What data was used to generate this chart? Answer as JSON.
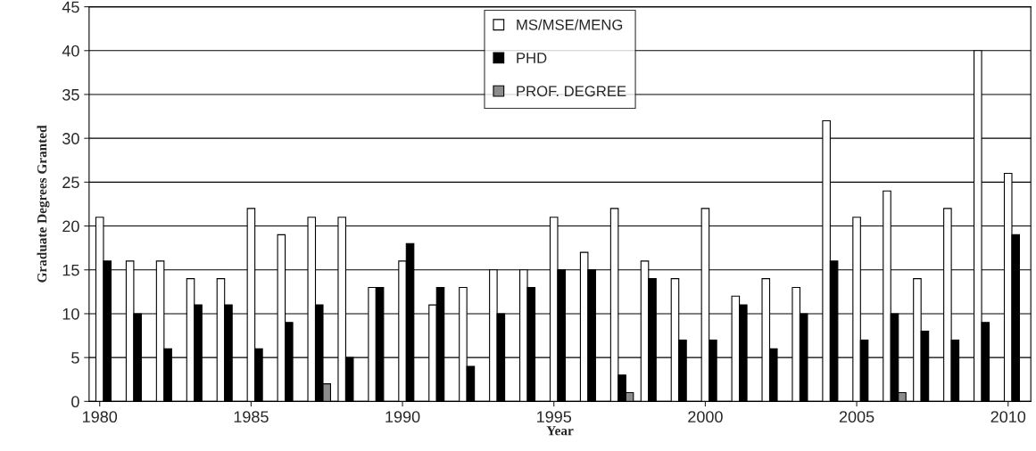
{
  "chart_data": {
    "type": "bar",
    "xlabel": "Year",
    "ylabel": "Graduate Degrees Granted",
    "x": [
      1980,
      1981,
      1982,
      1983,
      1984,
      1985,
      1986,
      1987,
      1988,
      1989,
      1990,
      1991,
      1992,
      1993,
      1994,
      1995,
      1996,
      1997,
      1998,
      1999,
      2000,
      2001,
      2002,
      2003,
      2004,
      2005,
      2006,
      2007,
      2008,
      2009,
      2010
    ],
    "series": [
      {
        "name": "MS/MSE/MENG",
        "color": "#ffffff",
        "values": [
          21,
          16,
          16,
          14,
          14,
          22,
          19,
          21,
          21,
          13,
          16,
          11,
          13,
          15,
          15,
          21,
          17,
          22,
          16,
          14,
          22,
          12,
          14,
          13,
          32,
          21,
          24,
          14,
          22,
          40,
          26
        ]
      },
      {
        "name": "PHD",
        "color": "#000000",
        "values": [
          16,
          10,
          6,
          11,
          11,
          6,
          9,
          11,
          5,
          13,
          18,
          13,
          4,
          10,
          13,
          15,
          15,
          3,
          14,
          7,
          7,
          11,
          6,
          10,
          16,
          7,
          10,
          8,
          7,
          9,
          19
        ]
      },
      {
        "name": "PROF. DEGREE",
        "color": "#8c8c8c",
        "values": [
          null,
          null,
          null,
          null,
          null,
          null,
          null,
          2,
          null,
          null,
          null,
          null,
          null,
          null,
          null,
          null,
          null,
          1,
          null,
          null,
          null,
          null,
          null,
          null,
          null,
          null,
          1,
          null,
          null,
          null,
          null
        ]
      }
    ],
    "xlim": [
      1979.65,
      2010.75
    ],
    "xticks": [
      1980,
      1985,
      1990,
      1995,
      2000,
      2005,
      2010
    ],
    "ylim": [
      0,
      45
    ],
    "yticks": [
      0,
      5,
      10,
      15,
      20,
      25,
      30,
      35,
      40,
      45
    ],
    "grid": "y",
    "legend": "top"
  }
}
